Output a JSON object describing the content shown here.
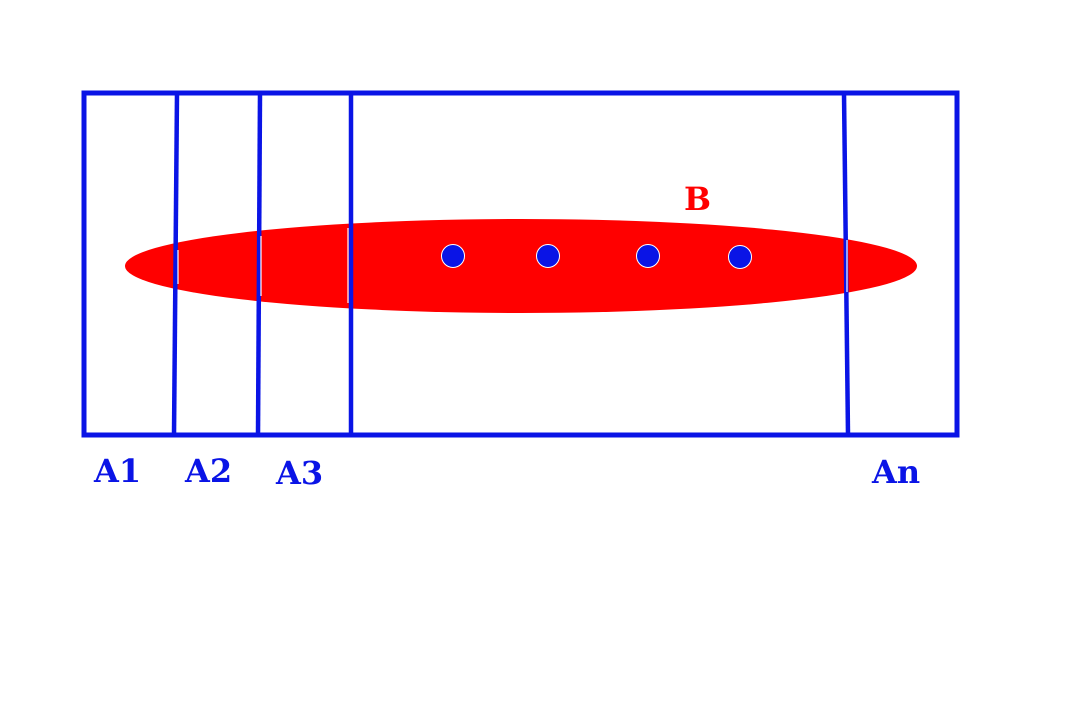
{
  "colors": {
    "partition": "#0a14e6",
    "set_b": "#ff0000",
    "background": "#ffffff"
  },
  "labels": {
    "a1": "A1",
    "a2": "A2",
    "a3": "A3",
    "an": "An",
    "b": "B"
  }
}
